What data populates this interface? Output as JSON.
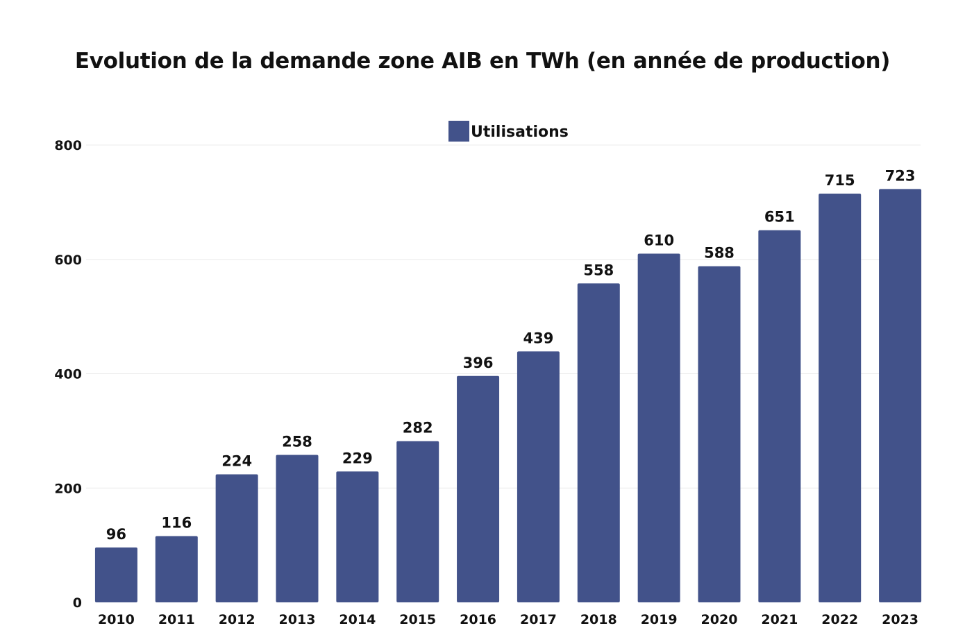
{
  "chart_data": {
    "type": "bar",
    "title": "Evolution de la demande zone AIB en TWh (en année de production)",
    "xlabel": "",
    "ylabel": "",
    "categories": [
      "2010",
      "2011",
      "2012",
      "2013",
      "2014",
      "2015",
      "2016",
      "2017",
      "2018",
      "2019",
      "2020",
      "2021",
      "2022",
      "2023"
    ],
    "series": [
      {
        "name": "Utilisations",
        "color": "#42528a",
        "values": [
          96,
          116,
          224,
          258,
          229,
          282,
          396,
          439,
          558,
          610,
          588,
          651,
          715,
          723
        ]
      }
    ],
    "ylim": [
      0,
      800
    ],
    "yticks": [
      0,
      200,
      400,
      600,
      800
    ],
    "grid": true,
    "legend": "top-center",
    "data_labels": true
  }
}
